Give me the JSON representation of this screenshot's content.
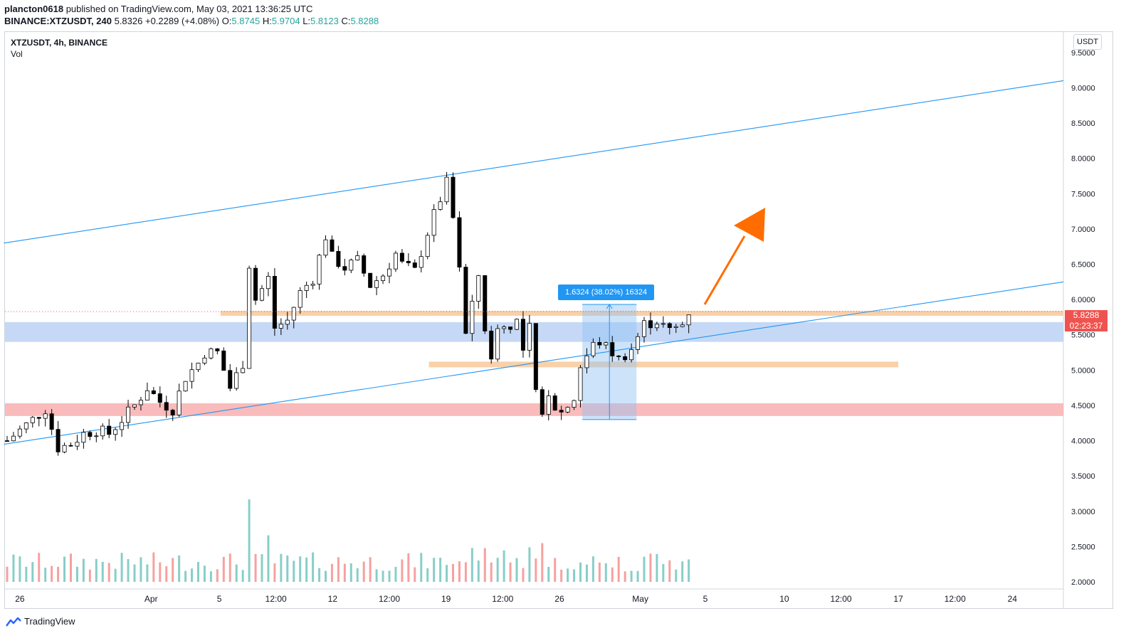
{
  "header": {
    "author": "plancton0618",
    "published_text": " published on TradingView.com, May 03, 2021 13:36:25 UTC",
    "symbol_line": "BINANCE:XTZUSDT, 240",
    "last": "5.8326",
    "change": "+0.2289 (+4.08%)",
    "o_label": "O:",
    "o_val": "5.8745",
    "h_label": "H:",
    "h_val": "5.9704",
    "l_label": "L:",
    "l_val": "5.8123",
    "c_label": "C:",
    "c_val": "5.8288"
  },
  "legend": {
    "title": "XTZUSDT, 4h, BINANCE",
    "indicator": "Vol"
  },
  "currency": "USDT",
  "price_tag": {
    "price": "5.8288",
    "countdown": "02:23:37"
  },
  "measure_label": "1.6324 (38.02%) 16324",
  "footer": {
    "brand": "TradingView"
  },
  "colors": {
    "up": "#26a69a",
    "down": "#ef5350",
    "trend": "#2196f3",
    "support": "#f7c99b",
    "zone_blue": "#bbd2f5",
    "zone_red": "#f8b4b4",
    "arrow": "#ff6d00"
  },
  "chart_data": {
    "type": "candlestick",
    "title": "XTZUSDT, 4h, BINANCE",
    "ylim": [
      1.9,
      9.8
    ],
    "y_ticks": [
      "9.5000",
      "9.0000",
      "8.5000",
      "8.0000",
      "7.5000",
      "7.0000",
      "6.5000",
      "6.0000",
      "5.5000",
      "5.0000",
      "4.5000",
      "4.0000",
      "3.5000",
      "3.0000",
      "2.5000",
      "2.0000"
    ],
    "x_ticks": [
      "26",
      "Apr",
      "5",
      "12:00",
      "12",
      "12:00",
      "19",
      "12:00",
      "26",
      "May",
      "5",
      "10",
      "12:00",
      "17",
      "12:00",
      "24"
    ],
    "close_path": [
      [
        0,
        4.0
      ],
      [
        4,
        4.3
      ],
      [
        6,
        4.45
      ],
      [
        8,
        3.9
      ],
      [
        10,
        3.95
      ],
      [
        12,
        4.1
      ],
      [
        14,
        4.15
      ],
      [
        16,
        4.1
      ],
      [
        18,
        4.3
      ],
      [
        20,
        4.5
      ],
      [
        22,
        4.75
      ],
      [
        24,
        4.55
      ],
      [
        26,
        4.45
      ],
      [
        28,
        4.9
      ],
      [
        30,
        5.1
      ],
      [
        31,
        5.25
      ],
      [
        33,
        5.25
      ],
      [
        35,
        4.75
      ],
      [
        37,
        5.1
      ],
      [
        38,
        6.5
      ],
      [
        39,
        6.0
      ],
      [
        41,
        6.3
      ],
      [
        42,
        5.6
      ],
      [
        44,
        5.7
      ],
      [
        46,
        6.1
      ],
      [
        48,
        6.3
      ],
      [
        50,
        6.9
      ],
      [
        51,
        6.6
      ],
      [
        53,
        6.45
      ],
      [
        55,
        6.55
      ],
      [
        57,
        6.2
      ],
      [
        59,
        6.35
      ],
      [
        61,
        6.65
      ],
      [
        62,
        6.5
      ],
      [
        64,
        6.4
      ],
      [
        66,
        6.95
      ],
      [
        67,
        7.2
      ],
      [
        69,
        7.65
      ],
      [
        70,
        7.15
      ],
      [
        71,
        6.4
      ],
      [
        72,
        5.5
      ],
      [
        73,
        5.9
      ],
      [
        74,
        6.35
      ],
      [
        75,
        5.6
      ],
      [
        76,
        5.1
      ],
      [
        77,
        5.65
      ],
      [
        78,
        5.6
      ],
      [
        80,
        5.7
      ],
      [
        81,
        5.25
      ],
      [
        82,
        5.6
      ],
      [
        83,
        4.65
      ],
      [
        84,
        4.35
      ],
      [
        85,
        4.7
      ],
      [
        86,
        4.5
      ],
      [
        87,
        4.4
      ],
      [
        89,
        4.6
      ],
      [
        90,
        5.05
      ],
      [
        92,
        5.35
      ],
      [
        93,
        5.4
      ],
      [
        95,
        5.25
      ],
      [
        96,
        5.15
      ],
      [
        98,
        5.3
      ],
      [
        100,
        5.65
      ],
      [
        102,
        5.7
      ],
      [
        104,
        5.55
      ],
      [
        106,
        5.65
      ],
      [
        107,
        5.83
      ]
    ],
    "current_price": 5.8288,
    "volume_spikes": [
      [
        38,
        3.95
      ],
      [
        41,
        3.1
      ]
    ],
    "levels": {
      "upper_trendline": [
        [
          -0.5,
          6.8
        ],
        [
          160,
          9.1
        ]
      ],
      "lower_trendline": [
        [
          -0.5,
          3.95
        ],
        [
          160,
          6.25
        ]
      ],
      "support_level_1": 5.81,
      "support_level_2": 5.08,
      "blue_zone": [
        5.4,
        5.68
      ],
      "red_zone": [
        4.35,
        4.53
      ],
      "measure": {
        "from": 4.3,
        "to": 5.93
      }
    }
  }
}
